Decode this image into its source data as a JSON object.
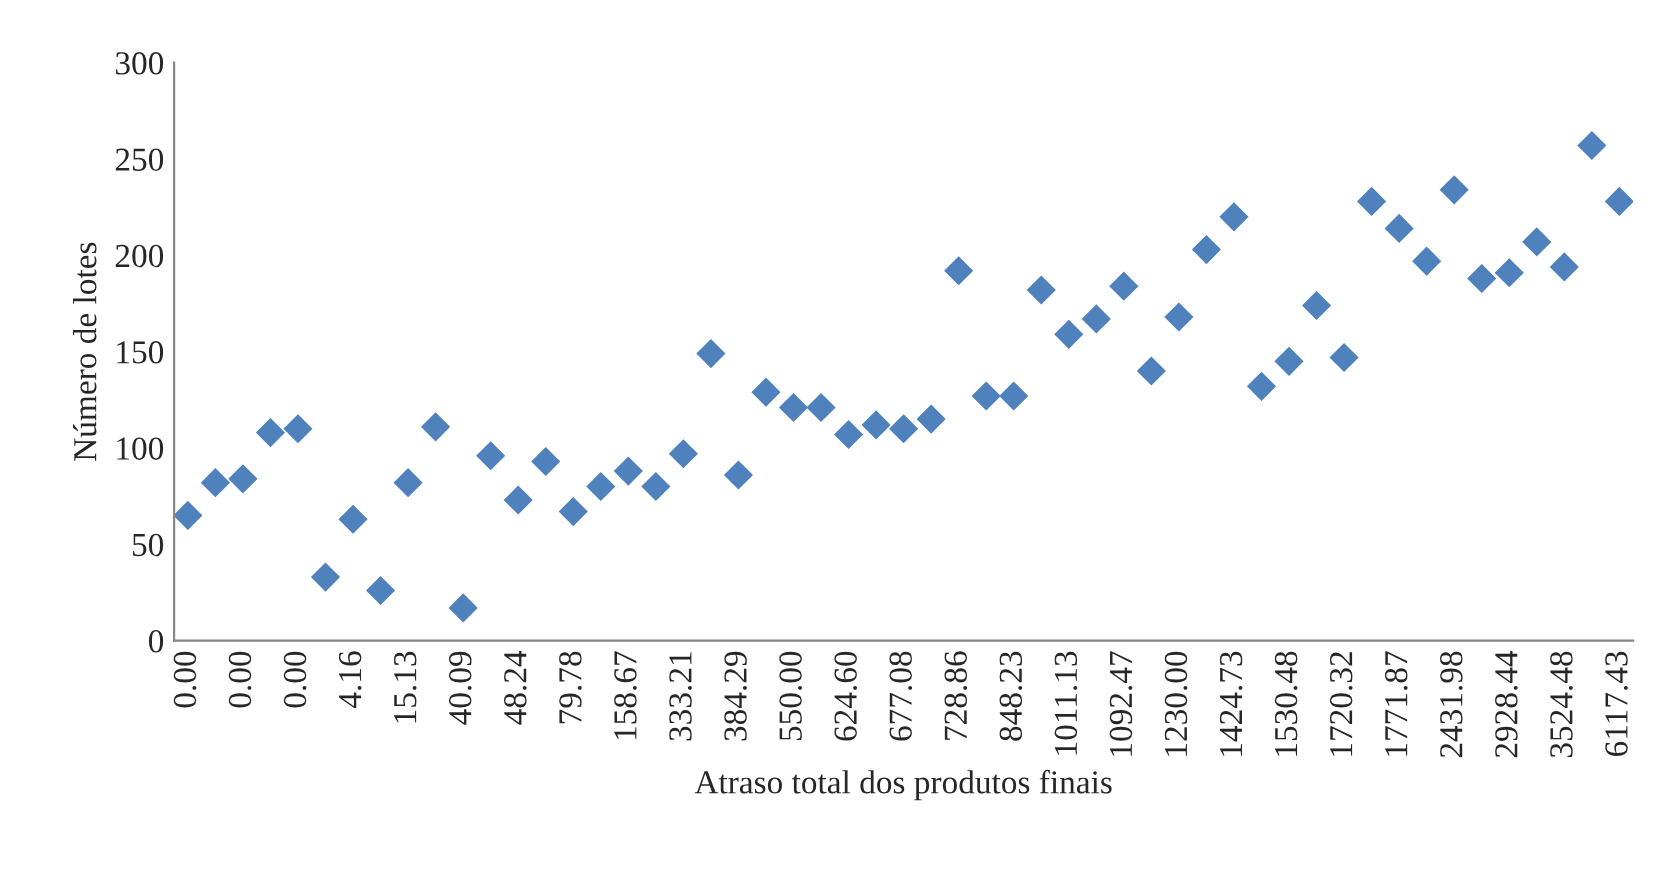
{
  "chart_data": {
    "type": "scatter",
    "xlabel": "Atraso total dos produtos finais",
    "ylabel": "Número de lotes",
    "categories": [
      "0.00",
      null,
      "0.00",
      null,
      "0.00",
      null,
      "4.16",
      null,
      "15.13",
      null,
      "40.09",
      null,
      "48.24",
      null,
      "79.78",
      null,
      "158.67",
      null,
      "333.21",
      null,
      "384.29",
      null,
      "550.00",
      null,
      "624.60",
      null,
      "677.08",
      null,
      "728.86",
      null,
      "848.23",
      null,
      "1011.13",
      null,
      "1092.47",
      null,
      "1230.00",
      null,
      "1424.73",
      null,
      "1530.48",
      null,
      "1720.32",
      null,
      "1771.87",
      null,
      "2431.98",
      null,
      "2928.44",
      null,
      "3524.48",
      null,
      "6117.43"
    ],
    "series": [
      {
        "color": "#4f81bd",
        "values": [
          65,
          82,
          84,
          108,
          110,
          33,
          63,
          26,
          82,
          111,
          17,
          96,
          73,
          93,
          67,
          80,
          88,
          80,
          97,
          149,
          86,
          129,
          121,
          121,
          107,
          112,
          110,
          115,
          192,
          127,
          127,
          182,
          159,
          167,
          184,
          140,
          168,
          203,
          220,
          132,
          145,
          174,
          147,
          228,
          214,
          197,
          234,
          188,
          191,
          207,
          194,
          257,
          228
        ]
      }
    ],
    "ylim": [
      0,
      300
    ],
    "yticks": [
      0,
      50,
      100,
      150,
      200,
      250,
      300
    ],
    "marker": "diamond",
    "grid": false,
    "legend": false
  }
}
